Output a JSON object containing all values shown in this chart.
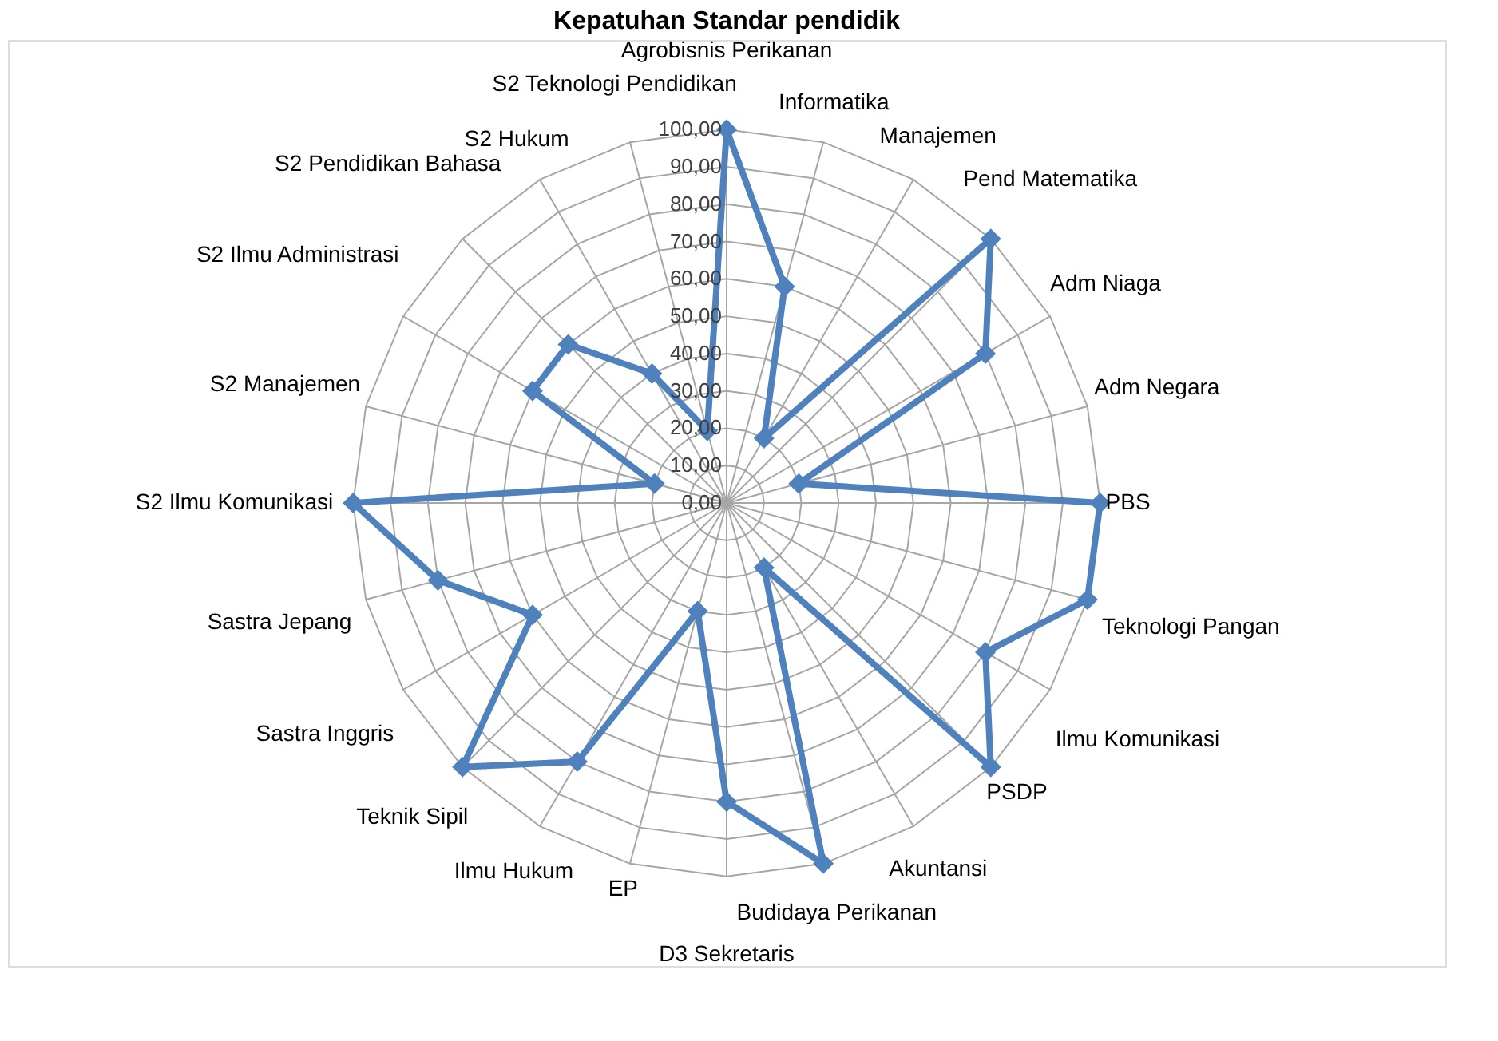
{
  "chart_data": {
    "type": "radar",
    "title": "Kepatuhan Standar pendidik",
    "categories": [
      "Agrobisnis Perikanan",
      "Informatika",
      "Manajemen",
      "Pend Matematika",
      "Adm Niaga",
      "Adm Negara",
      "PBS",
      "Teknologi Pangan",
      "Ilmu  Komunikasi",
      "PSDP",
      "Akuntansi",
      "Budidaya Perikanan",
      "D3 Sekretaris",
      "EP",
      "Ilmu Hukum",
      "Teknik Sipil",
      "Sastra Inggris",
      "Sastra Jepang",
      "S2 Ilmu Komunikasi",
      "S2 Manajemen",
      "S2 Ilmu Administrasi",
      "S2 Pendidikan Bahasa",
      "S2 Hukum",
      "S2 Teknologi Pendidikan"
    ],
    "series": [
      {
        "color": "#4f81bd",
        "values": [
          100,
          60,
          20,
          100,
          80,
          20,
          100,
          100,
          80,
          100,
          20,
          100,
          80,
          30,
          80,
          100,
          60,
          80,
          100,
          20,
          60,
          60,
          40,
          20
        ]
      }
    ],
    "ylim": [
      0,
      100
    ],
    "yticks": [
      {
        "value": 0,
        "label": "0,00"
      },
      {
        "value": 10,
        "label": "10,00"
      },
      {
        "value": 20,
        "label": "20,00"
      },
      {
        "value": 30,
        "label": "30,00"
      },
      {
        "value": 40,
        "label": "40,00"
      },
      {
        "value": 50,
        "label": "50,00"
      },
      {
        "value": 60,
        "label": "60,00"
      },
      {
        "value": 70,
        "label": "70,00"
      },
      {
        "value": 80,
        "label": "80,00"
      },
      {
        "value": 90,
        "label": "90,00"
      },
      {
        "value": 100,
        "label": "100,00"
      }
    ],
    "grid": true,
    "marker": "diamond",
    "line_style": "solid"
  }
}
